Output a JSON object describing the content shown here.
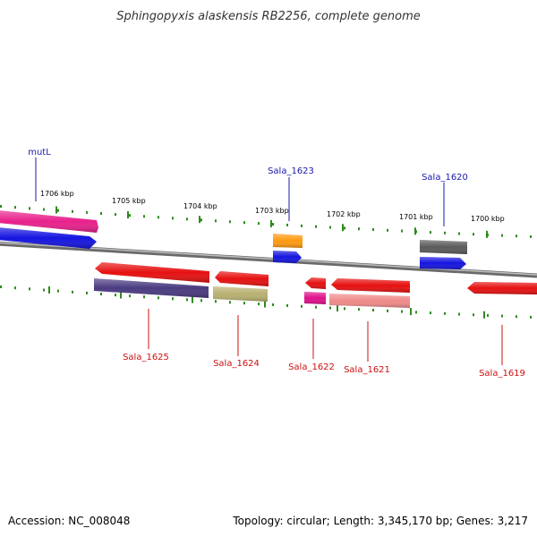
{
  "title": "Sphingopyxis alaskensis RB2256, complete genome",
  "footer": {
    "accession": "Accession: NC_008048",
    "topology": "Topology: circular; Length: 3,345,170 bp; Genes: 3,217"
  },
  "ruler": {
    "labels": [
      "1706 kbp",
      "1705 kbp",
      "1704 kbp",
      "1703 kbp",
      "1702 kbp",
      "1701 kbp",
      "1700 kbp"
    ]
  },
  "gene_labels": {
    "top": [
      "mutL",
      "Sala_1623",
      "Sala_1620"
    ],
    "bottom": [
      "Sala_1625",
      "Sala_1624",
      "Sala_1622",
      "Sala_1621",
      "Sala_1619"
    ]
  },
  "colors": {
    "backbone": "#8a8a8a",
    "tick": "#2e8b1e",
    "label_top": "#1a1aaa",
    "label_bottom": "#cc1111",
    "red": "#e61010",
    "pink": "#e8208c",
    "blue": "#1010e6",
    "orange": "#ff9a10",
    "darkgray": "#5a5a5a",
    "purple": "#4a3a80",
    "olive": "#b8b070",
    "salmon": "#f08a8a",
    "magenta": "#e0108c"
  }
}
